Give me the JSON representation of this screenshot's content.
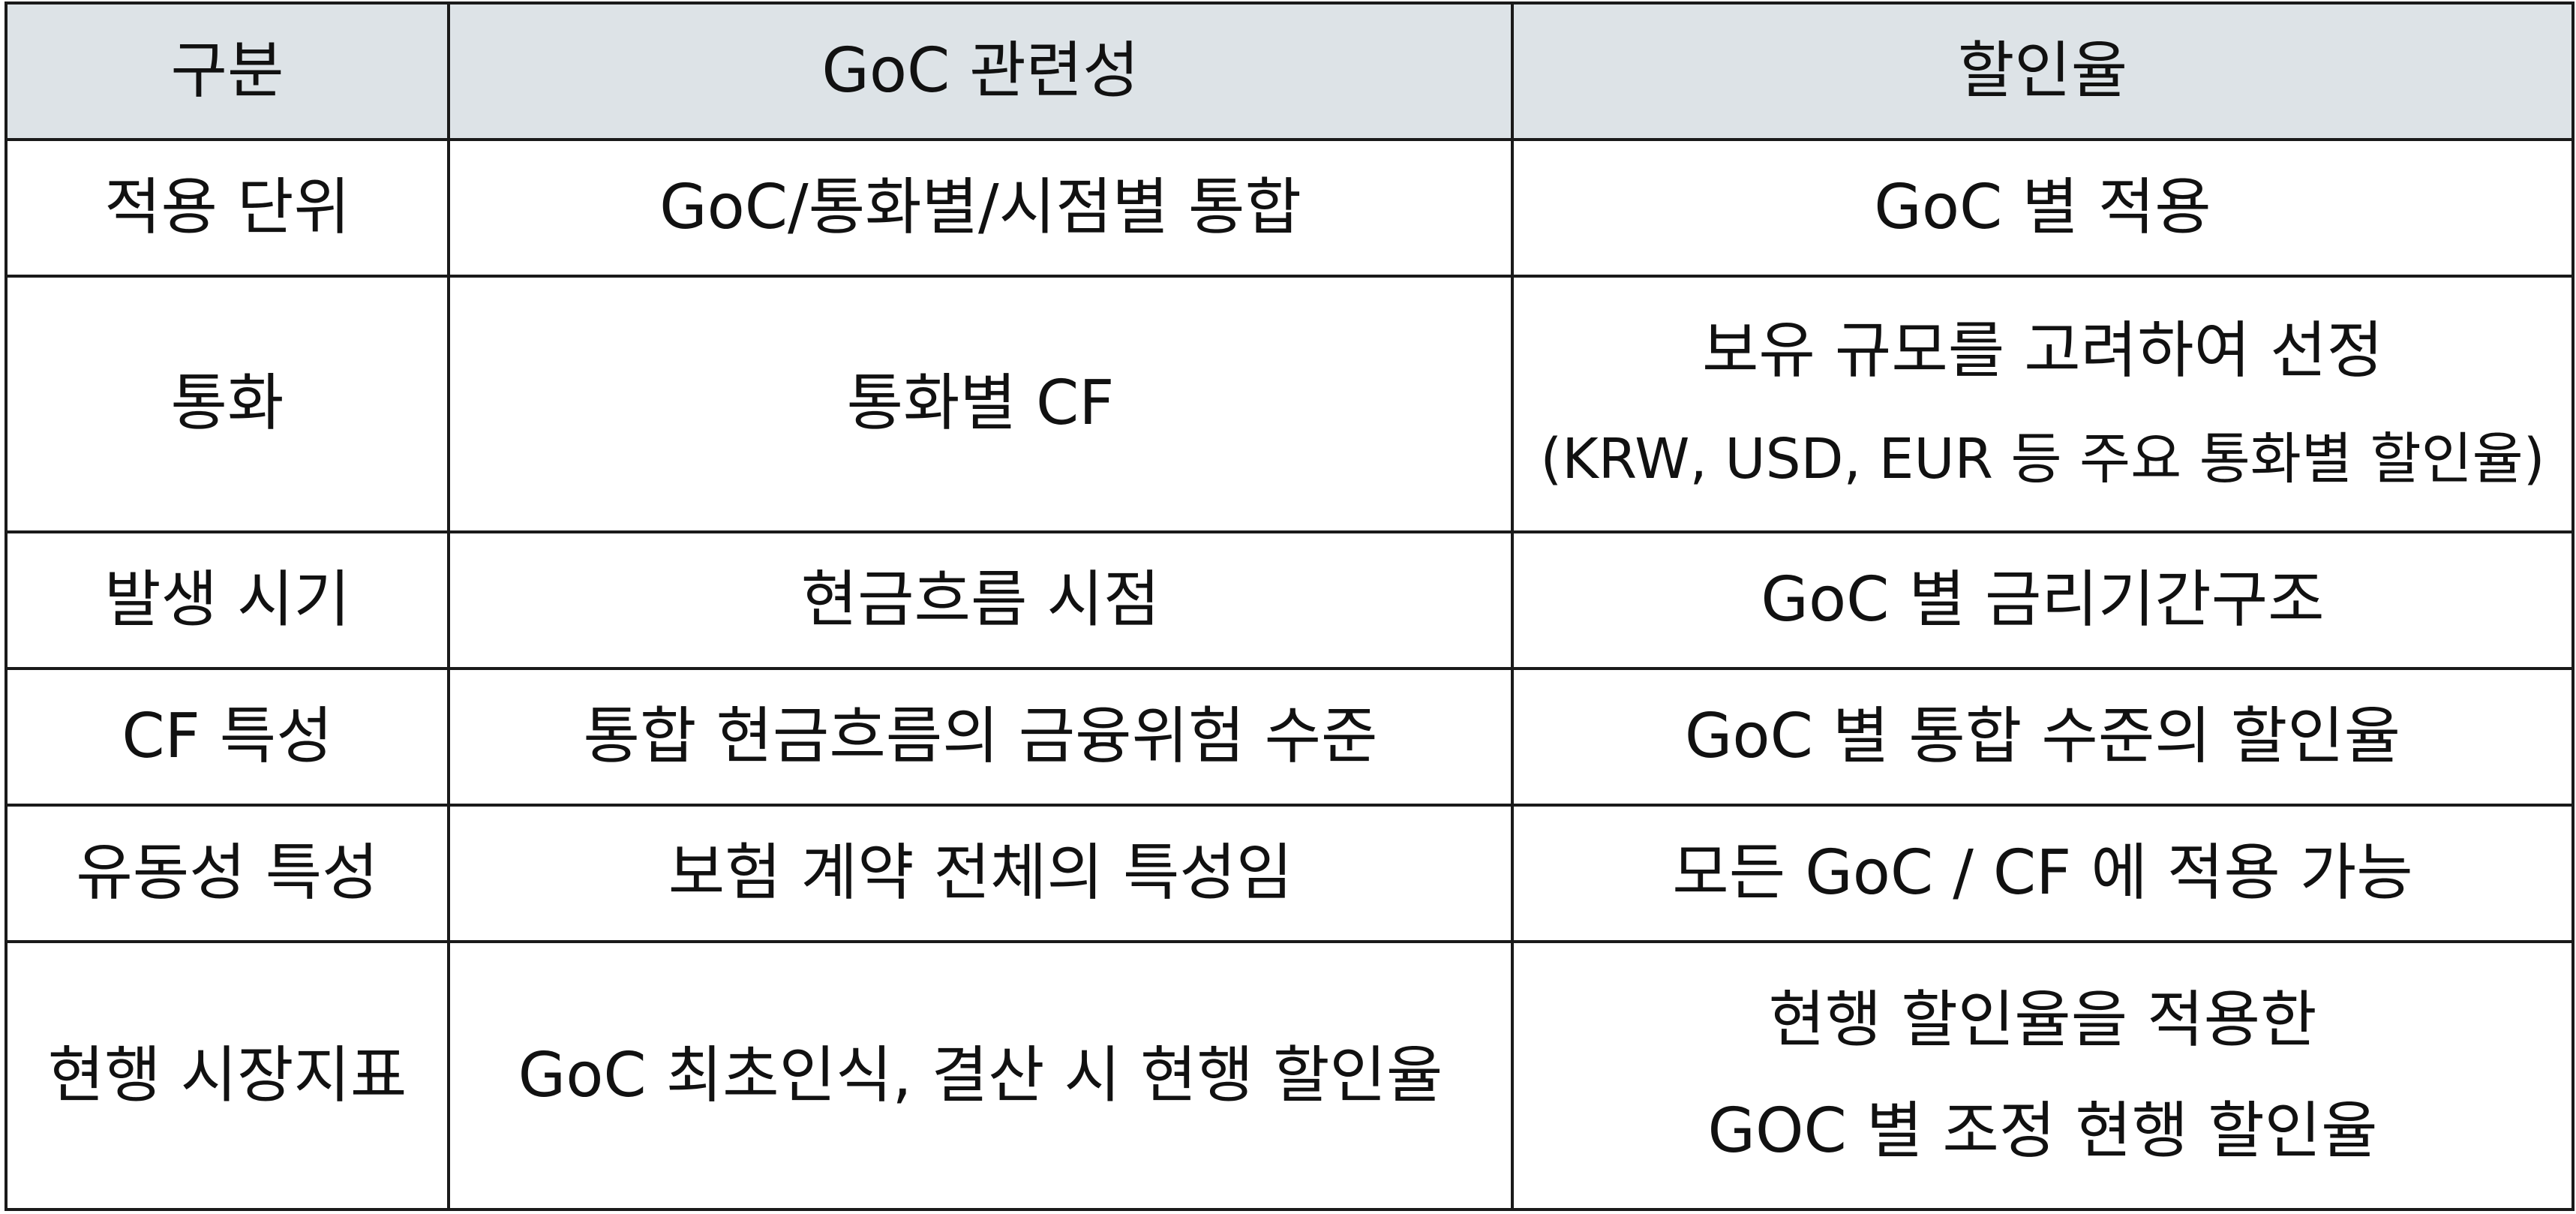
{
  "table": {
    "headers": [
      "구분",
      "GoC 관련성",
      "할인율"
    ],
    "rows": [
      {
        "category": "적용 단위",
        "relevance": [
          "GoC/통화별/시점별 통합"
        ],
        "discount": [
          "GoC 별 적용"
        ]
      },
      {
        "category": "통화",
        "relevance": [
          "통화별 CF"
        ],
        "discount": [
          "보유 규모를 고려하여 선정",
          "(KRW, USD, EUR 등 주요 통화별 할인율)"
        ]
      },
      {
        "category": "발생 시기",
        "relevance": [
          "현금흐름 시점"
        ],
        "discount": [
          "GoC 별 금리기간구조"
        ]
      },
      {
        "category": "CF 특성",
        "relevance": [
          "통합 현금흐름의 금융위험 수준"
        ],
        "discount": [
          "GoC 별 통합 수준의 할인율"
        ]
      },
      {
        "category": "유동성 특성",
        "relevance": [
          "보험 계약 전체의 특성임"
        ],
        "discount": [
          "모든 GoC / CF 에 적용 가능"
        ]
      },
      {
        "category": "현행 시장지표",
        "relevance": [
          "GoC 최초인식, 결산 시 현행 할인율"
        ],
        "discount": [
          "현행 할인율을 적용한",
          "GOC 별 조정 현행 할인율"
        ]
      }
    ]
  },
  "colors": {
    "header_bg": "#dde3e7",
    "border": "#1a1a1a",
    "text": "#111111"
  }
}
